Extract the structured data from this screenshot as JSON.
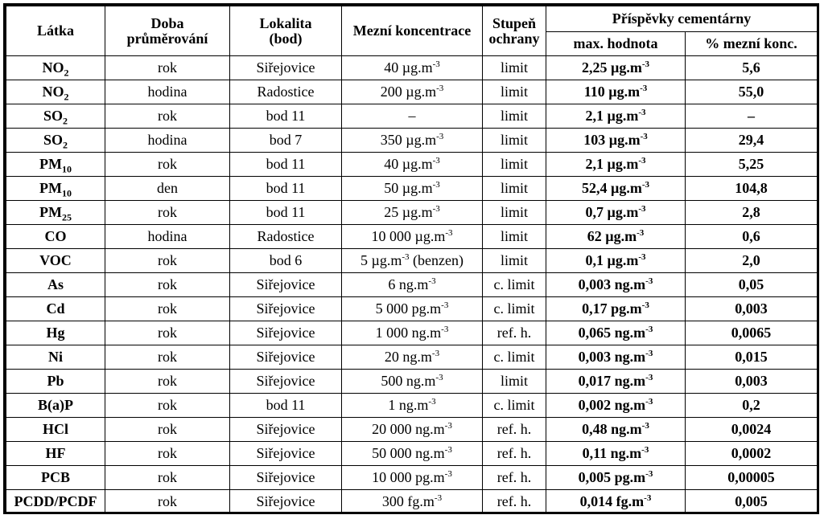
{
  "headers": {
    "latka": "Látka",
    "doba_1": "Doba",
    "doba_2": "průměrování",
    "lokalita_1": "Lokalita",
    "lokalita_2": "(bod)",
    "mezni": "Mezní koncentrace",
    "stupen_1": "Stupeň",
    "stupen_2": "ochrany",
    "prispevky": "Příspěvky cementárny",
    "max": "max. hodnota",
    "procenta": "% mezní konc."
  },
  "rows": [
    {
      "latka": "NO",
      "sub": "2",
      "doba": "rok",
      "lokalita": "Siřejovice",
      "mezni": "40 µg.m",
      "mezni_exp": "-3",
      "mezni_suffix": "",
      "stupen": "limit",
      "max": "2,25 µg.m",
      "max_exp": "-3",
      "pct": "5,6"
    },
    {
      "latka": "NO",
      "sub": "2",
      "doba": "hodina",
      "lokalita": "Radostice",
      "mezni": "200 µg.m",
      "mezni_exp": "-3",
      "mezni_suffix": "",
      "stupen": "limit",
      "max": "110 µg.m",
      "max_exp": "-3",
      "pct": "55,0"
    },
    {
      "latka": "SO",
      "sub": "2",
      "doba": "rok",
      "lokalita": "bod 11",
      "mezni": "–",
      "mezni_exp": "",
      "mezni_suffix": "",
      "stupen": "limit",
      "max": "2,1 µg.m",
      "max_exp": "-3",
      "pct": "–"
    },
    {
      "latka": "SO",
      "sub": "2",
      "doba": "hodina",
      "lokalita": "bod 7",
      "mezni": "350 µg.m",
      "mezni_exp": "-3",
      "mezni_suffix": "",
      "stupen": "limit",
      "max": "103 µg.m",
      "max_exp": "-3",
      "pct": "29,4"
    },
    {
      "latka": "PM",
      "sub": "10",
      "doba": "rok",
      "lokalita": "bod 11",
      "mezni": "40 µg.m",
      "mezni_exp": "-3",
      "mezni_suffix": "",
      "stupen": "limit",
      "max": "2,1 µg.m",
      "max_exp": "-3",
      "pct": "5,25"
    },
    {
      "latka": "PM",
      "sub": "10",
      "doba": "den",
      "lokalita": "bod 11",
      "mezni": "50 µg.m",
      "mezni_exp": "-3",
      "mezni_suffix": "",
      "stupen": "limit",
      "max": "52,4 µg.m",
      "max_exp": "-3",
      "pct": "104,8"
    },
    {
      "latka": "PM",
      "sub": "25",
      "doba": "rok",
      "lokalita": "bod 11",
      "mezni": "25 µg.m",
      "mezni_exp": "-3",
      "mezni_suffix": "",
      "stupen": "limit",
      "max": "0,7 µg.m",
      "max_exp": "-3",
      "pct": "2,8"
    },
    {
      "latka": "CO",
      "sub": "",
      "doba": "hodina",
      "lokalita": "Radostice",
      "mezni": "10 000 µg.m",
      "mezni_exp": "-3",
      "mezni_suffix": "",
      "stupen": "limit",
      "max": "62 µg.m",
      "max_exp": "-3",
      "pct": "0,6"
    },
    {
      "latka": "VOC",
      "sub": "",
      "doba": "rok",
      "lokalita": "bod 6",
      "mezni": "5 µg.m",
      "mezni_exp": "-3",
      "mezni_suffix": " (benzen)",
      "stupen": "limit",
      "max": "0,1 µg.m",
      "max_exp": "-3",
      "pct": "2,0"
    },
    {
      "latka": "As",
      "sub": "",
      "doba": "rok",
      "lokalita": "Siřejovice",
      "mezni": "6 ng.m",
      "mezni_exp": "-3",
      "mezni_suffix": "",
      "stupen": "c. limit",
      "max": "0,003 ng.m",
      "max_exp": "-3",
      "pct": "0,05"
    },
    {
      "latka": "Cd",
      "sub": "",
      "doba": "rok",
      "lokalita": "Siřejovice",
      "mezni": "5 000 pg.m",
      "mezni_exp": "-3",
      "mezni_suffix": "",
      "stupen": "c. limit",
      "max": "0,17 pg.m",
      "max_exp": "-3",
      "pct": "0,003"
    },
    {
      "latka": "Hg",
      "sub": "",
      "doba": "rok",
      "lokalita": "Siřejovice",
      "mezni": "1 000 ng.m",
      "mezni_exp": "-3",
      "mezni_suffix": "",
      "stupen": "ref. h.",
      "max": "0,065 ng.m",
      "max_exp": "-3",
      "pct": "0,0065"
    },
    {
      "latka": "Ni",
      "sub": "",
      "doba": "rok",
      "lokalita": "Siřejovice",
      "mezni": "20 ng.m",
      "mezni_exp": "-3",
      "mezni_suffix": "",
      "stupen": "c. limit",
      "max": "0,003 ng.m",
      "max_exp": "-3",
      "pct": "0,015"
    },
    {
      "latka": "Pb",
      "sub": "",
      "doba": "rok",
      "lokalita": "Siřejovice",
      "mezni": "500 ng.m",
      "mezni_exp": "-3",
      "mezni_suffix": "",
      "stupen": "limit",
      "max": "0,017 ng.m",
      "max_exp": "-3",
      "pct": "0,003"
    },
    {
      "latka": "B(a)P",
      "sub": "",
      "doba": "rok",
      "lokalita": "bod 11",
      "mezni": "1 ng.m",
      "mezni_exp": "-3",
      "mezni_suffix": "",
      "stupen": "c. limit",
      "max": "0,002 ng.m",
      "max_exp": "-3",
      "pct": "0,2"
    },
    {
      "latka": "HCl",
      "sub": "",
      "doba": "rok",
      "lokalita": "Siřejovice",
      "mezni": "20 000 ng.m",
      "mezni_exp": "-3",
      "mezni_suffix": "",
      "stupen": "ref. h.",
      "max": "0,48 ng.m",
      "max_exp": "-3",
      "pct": "0,0024"
    },
    {
      "latka": "HF",
      "sub": "",
      "doba": "rok",
      "lokalita": "Siřejovice",
      "mezni": "50 000 ng.m",
      "mezni_exp": "-3",
      "mezni_suffix": "",
      "stupen": "ref. h.",
      "max": "0,11 ng.m",
      "max_exp": "-3",
      "pct": "0,0002"
    },
    {
      "latka": "PCB",
      "sub": "",
      "doba": "rok",
      "lokalita": "Siřejovice",
      "mezni": "10 000 pg.m",
      "mezni_exp": "-3",
      "mezni_suffix": "",
      "stupen": "ref. h.",
      "max": "0,005 pg.m",
      "max_exp": "-3",
      "pct": "0,00005"
    },
    {
      "latka": "PCDD/PCDF",
      "sub": "",
      "doba": "rok",
      "lokalita": "Siřejovice",
      "mezni": "300 fg.m",
      "mezni_exp": "-3",
      "mezni_suffix": "",
      "stupen": "ref. h.",
      "max": "0,014 fg.m",
      "max_exp": "-3",
      "pct": "0,005"
    }
  ]
}
